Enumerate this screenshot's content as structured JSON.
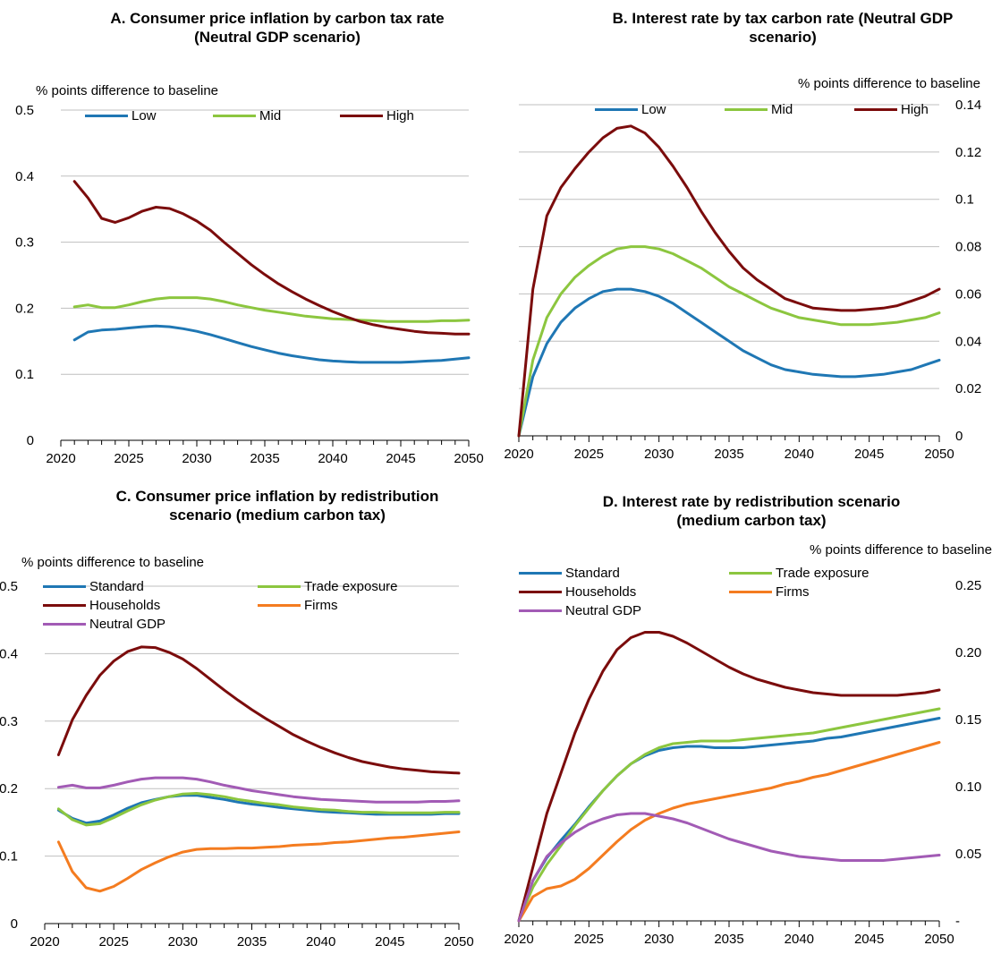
{
  "colors": {
    "blue": "#1f77b4",
    "green": "#8cc63f",
    "darkred": "#7b0c0c",
    "orange": "#f47c20",
    "purple": "#a25bb5",
    "grid": "#bfbfbf"
  },
  "chart_data": [
    {
      "id": "A",
      "type": "line",
      "title": "A. Consumer price inflation by carbon tax rate\n(Neutral GDP scenario)",
      "ylabel": "% points difference to baseline",
      "y_axis_side": "left",
      "ylim": [
        0,
        0.5
      ],
      "yticks": [
        0,
        0.1,
        0.2,
        0.3,
        0.4,
        0.5
      ],
      "ytick_labels": [
        "0",
        "0.1",
        "0.2",
        "0.3",
        "0.4",
        "0.5"
      ],
      "xlim": [
        2020,
        2050
      ],
      "xticks": [
        2020,
        2025,
        2030,
        2035,
        2040,
        2045,
        2050
      ],
      "grid": true,
      "legend_position": "top",
      "x": [
        2021,
        2022,
        2023,
        2024,
        2025,
        2026,
        2027,
        2028,
        2029,
        2030,
        2031,
        2032,
        2033,
        2034,
        2035,
        2036,
        2037,
        2038,
        2039,
        2040,
        2041,
        2042,
        2043,
        2044,
        2045,
        2046,
        2047,
        2048,
        2049,
        2050
      ],
      "series": [
        {
          "name": "Low",
          "color": "blue",
          "values": [
            0.152,
            0.164,
            0.167,
            0.168,
            0.17,
            0.172,
            0.173,
            0.172,
            0.169,
            0.165,
            0.16,
            0.154,
            0.148,
            0.142,
            0.137,
            0.132,
            0.128,
            0.125,
            0.122,
            0.12,
            0.119,
            0.118,
            0.118,
            0.118,
            0.118,
            0.119,
            0.12,
            0.121,
            0.123,
            0.125
          ]
        },
        {
          "name": "Mid",
          "color": "green",
          "values": [
            0.202,
            0.205,
            0.201,
            0.201,
            0.205,
            0.21,
            0.214,
            0.216,
            0.216,
            0.216,
            0.214,
            0.21,
            0.205,
            0.201,
            0.197,
            0.194,
            0.191,
            0.188,
            0.186,
            0.184,
            0.183,
            0.182,
            0.181,
            0.18,
            0.18,
            0.18,
            0.18,
            0.181,
            0.181,
            0.182
          ]
        },
        {
          "name": "High",
          "color": "darkred",
          "values": [
            0.392,
            0.367,
            0.336,
            0.33,
            0.337,
            0.347,
            0.353,
            0.351,
            0.343,
            0.332,
            0.318,
            0.3,
            0.283,
            0.266,
            0.251,
            0.237,
            0.225,
            0.214,
            0.204,
            0.195,
            0.187,
            0.18,
            0.175,
            0.171,
            0.168,
            0.165,
            0.163,
            0.162,
            0.161,
            0.161
          ]
        }
      ]
    },
    {
      "id": "B",
      "type": "line",
      "title": "B. Interest rate by tax carbon rate (Neutral GDP\nscenario)",
      "ylabel": "% points difference to baseline",
      "y_axis_side": "right",
      "ylim": [
        0,
        0.14
      ],
      "yticks": [
        0,
        0.02,
        0.04,
        0.06,
        0.08,
        0.1,
        0.12,
        0.14
      ],
      "ytick_labels": [
        "0",
        "0.02",
        "0.04",
        "0.06",
        "0.08",
        "0.1",
        "0.12",
        "0.14"
      ],
      "xlim": [
        2020,
        2050
      ],
      "xticks": [
        2020,
        2025,
        2030,
        2035,
        2040,
        2045,
        2050
      ],
      "grid": true,
      "legend_position": "top",
      "x": [
        2020,
        2021,
        2022,
        2023,
        2024,
        2025,
        2026,
        2027,
        2028,
        2029,
        2030,
        2031,
        2032,
        2033,
        2034,
        2035,
        2036,
        2037,
        2038,
        2039,
        2040,
        2041,
        2042,
        2043,
        2044,
        2045,
        2046,
        2047,
        2048,
        2049,
        2050
      ],
      "series": [
        {
          "name": "Low",
          "color": "blue",
          "values": [
            0,
            0.025,
            0.039,
            0.048,
            0.054,
            0.058,
            0.061,
            0.062,
            0.062,
            0.061,
            0.059,
            0.056,
            0.052,
            0.048,
            0.044,
            0.04,
            0.036,
            0.033,
            0.03,
            0.028,
            0.027,
            0.026,
            0.0255,
            0.025,
            0.025,
            0.0255,
            0.026,
            0.027,
            0.028,
            0.03,
            0.032
          ]
        },
        {
          "name": "Mid",
          "color": "green",
          "values": [
            0,
            0.032,
            0.05,
            0.06,
            0.067,
            0.072,
            0.076,
            0.079,
            0.08,
            0.08,
            0.079,
            0.077,
            0.074,
            0.071,
            0.067,
            0.063,
            0.06,
            0.057,
            0.054,
            0.052,
            0.05,
            0.049,
            0.048,
            0.047,
            0.047,
            0.047,
            0.0475,
            0.048,
            0.049,
            0.05,
            0.052
          ]
        },
        {
          "name": "High",
          "color": "darkred",
          "values": [
            0,
            0.062,
            0.093,
            0.105,
            0.113,
            0.12,
            0.126,
            0.13,
            0.131,
            0.128,
            0.122,
            0.114,
            0.105,
            0.095,
            0.086,
            0.078,
            0.071,
            0.066,
            0.062,
            0.058,
            0.056,
            0.054,
            0.0535,
            0.053,
            0.053,
            0.0535,
            0.054,
            0.055,
            0.057,
            0.059,
            0.062
          ]
        }
      ]
    },
    {
      "id": "C",
      "type": "line",
      "title": "C. Consumer price inflation by redistribution\nscenario (medium carbon tax)",
      "ylabel": "% points difference to baseline",
      "y_axis_side": "left",
      "ylim": [
        0,
        0.5
      ],
      "yticks": [
        0,
        0.1,
        0.2,
        0.3,
        0.4,
        0.5
      ],
      "ytick_labels": [
        "0",
        "0.1",
        "0.2",
        "0.3",
        "0.4",
        "0.5"
      ],
      "xlim": [
        2020,
        2050
      ],
      "xticks": [
        2020,
        2025,
        2030,
        2035,
        2040,
        2045,
        2050
      ],
      "grid": true,
      "legend_position": "top",
      "x": [
        2021,
        2022,
        2023,
        2024,
        2025,
        2026,
        2027,
        2028,
        2029,
        2030,
        2031,
        2032,
        2033,
        2034,
        2035,
        2036,
        2037,
        2038,
        2039,
        2040,
        2041,
        2042,
        2043,
        2044,
        2045,
        2046,
        2047,
        2048,
        2049,
        2050
      ],
      "series": [
        {
          "name": "Standard",
          "color": "blue",
          "values": [
            0.168,
            0.156,
            0.149,
            0.152,
            0.161,
            0.171,
            0.179,
            0.184,
            0.188,
            0.19,
            0.19,
            0.187,
            0.184,
            0.18,
            0.177,
            0.175,
            0.172,
            0.17,
            0.168,
            0.166,
            0.165,
            0.164,
            0.163,
            0.162,
            0.162,
            0.162,
            0.162,
            0.162,
            0.163,
            0.163
          ]
        },
        {
          "name": "Trade exposure",
          "color": "green",
          "values": [
            0.17,
            0.154,
            0.146,
            0.148,
            0.157,
            0.167,
            0.176,
            0.183,
            0.188,
            0.192,
            0.193,
            0.191,
            0.188,
            0.184,
            0.181,
            0.178,
            0.176,
            0.173,
            0.171,
            0.169,
            0.168,
            0.166,
            0.165,
            0.165,
            0.164,
            0.164,
            0.164,
            0.164,
            0.165,
            0.165
          ]
        },
        {
          "name": "Households",
          "color": "darkred",
          "values": [
            0.25,
            0.302,
            0.338,
            0.368,
            0.389,
            0.403,
            0.41,
            0.409,
            0.402,
            0.392,
            0.378,
            0.362,
            0.346,
            0.331,
            0.317,
            0.304,
            0.292,
            0.28,
            0.27,
            0.261,
            0.253,
            0.246,
            0.24,
            0.236,
            0.232,
            0.229,
            0.227,
            0.225,
            0.224,
            0.223
          ]
        },
        {
          "name": "Firms",
          "color": "orange",
          "values": [
            0.121,
            0.077,
            0.053,
            0.048,
            0.055,
            0.067,
            0.08,
            0.09,
            0.099,
            0.106,
            0.11,
            0.111,
            0.111,
            0.112,
            0.112,
            0.113,
            0.114,
            0.116,
            0.117,
            0.118,
            0.12,
            0.121,
            0.123,
            0.125,
            0.127,
            0.128,
            0.13,
            0.132,
            0.134,
            0.136
          ]
        },
        {
          "name": "Neutral GDP",
          "color": "purple",
          "values": [
            0.202,
            0.205,
            0.201,
            0.201,
            0.205,
            0.21,
            0.214,
            0.216,
            0.216,
            0.216,
            0.214,
            0.21,
            0.205,
            0.201,
            0.197,
            0.194,
            0.191,
            0.188,
            0.186,
            0.184,
            0.183,
            0.182,
            0.181,
            0.18,
            0.18,
            0.18,
            0.18,
            0.181,
            0.181,
            0.182
          ]
        }
      ]
    },
    {
      "id": "D",
      "type": "line",
      "title": "D. Interest rate by redistribution scenario\n(medium carbon tax)",
      "ylabel": "% points difference to baseline",
      "y_axis_side": "right",
      "ylim": [
        0,
        0.25
      ],
      "yticks": [
        0,
        0.05,
        0.1,
        0.15,
        0.2,
        0.25
      ],
      "ytick_labels": [
        "-",
        "0.05",
        "0.10",
        "0.15",
        "0.20",
        "0.25"
      ],
      "xlim": [
        2020,
        2050
      ],
      "xticks": [
        2020,
        2025,
        2030,
        2035,
        2040,
        2045,
        2050
      ],
      "grid": false,
      "legend_position": "top",
      "x": [
        2020,
        2021,
        2022,
        2023,
        2024,
        2025,
        2026,
        2027,
        2028,
        2029,
        2030,
        2031,
        2032,
        2033,
        2034,
        2035,
        2036,
        2037,
        2038,
        2039,
        2040,
        2041,
        2042,
        2043,
        2044,
        2045,
        2046,
        2047,
        2048,
        2049,
        2050
      ],
      "series": [
        {
          "name": "Standard",
          "color": "blue",
          "values": [
            0,
            0.03,
            0.047,
            0.06,
            0.072,
            0.085,
            0.097,
            0.108,
            0.117,
            0.123,
            0.127,
            0.129,
            0.13,
            0.13,
            0.129,
            0.129,
            0.129,
            0.13,
            0.131,
            0.132,
            0.133,
            0.134,
            0.136,
            0.137,
            0.139,
            0.141,
            0.143,
            0.145,
            0.147,
            0.149,
            0.151
          ]
        },
        {
          "name": "Trade exposure",
          "color": "green",
          "values": [
            0,
            0.025,
            0.042,
            0.056,
            0.071,
            0.084,
            0.097,
            0.108,
            0.117,
            0.124,
            0.129,
            0.132,
            0.133,
            0.134,
            0.134,
            0.134,
            0.135,
            0.136,
            0.137,
            0.138,
            0.139,
            0.14,
            0.142,
            0.144,
            0.146,
            0.148,
            0.15,
            0.152,
            0.154,
            0.156,
            0.158
          ]
        },
        {
          "name": "Households",
          "color": "darkred",
          "values": [
            0,
            0.04,
            0.08,
            0.11,
            0.14,
            0.165,
            0.186,
            0.202,
            0.211,
            0.215,
            0.215,
            0.212,
            0.207,
            0.201,
            0.195,
            0.189,
            0.184,
            0.18,
            0.177,
            0.174,
            0.172,
            0.17,
            0.169,
            0.168,
            0.168,
            0.168,
            0.168,
            0.168,
            0.169,
            0.17,
            0.172
          ]
        },
        {
          "name": "Firms",
          "color": "orange",
          "values": [
            0,
            0.018,
            0.024,
            0.026,
            0.031,
            0.039,
            0.049,
            0.059,
            0.068,
            0.075,
            0.08,
            0.084,
            0.087,
            0.089,
            0.091,
            0.093,
            0.095,
            0.097,
            0.099,
            0.102,
            0.104,
            0.107,
            0.109,
            0.112,
            0.115,
            0.118,
            0.121,
            0.124,
            0.127,
            0.13,
            0.133
          ]
        },
        {
          "name": "Neutral GDP",
          "color": "purple",
          "values": [
            0,
            0.03,
            0.048,
            0.058,
            0.066,
            0.072,
            0.076,
            0.079,
            0.08,
            0.08,
            0.078,
            0.076,
            0.073,
            0.069,
            0.065,
            0.061,
            0.058,
            0.055,
            0.052,
            0.05,
            0.048,
            0.047,
            0.046,
            0.045,
            0.045,
            0.045,
            0.045,
            0.046,
            0.047,
            0.048,
            0.049
          ]
        }
      ]
    }
  ]
}
